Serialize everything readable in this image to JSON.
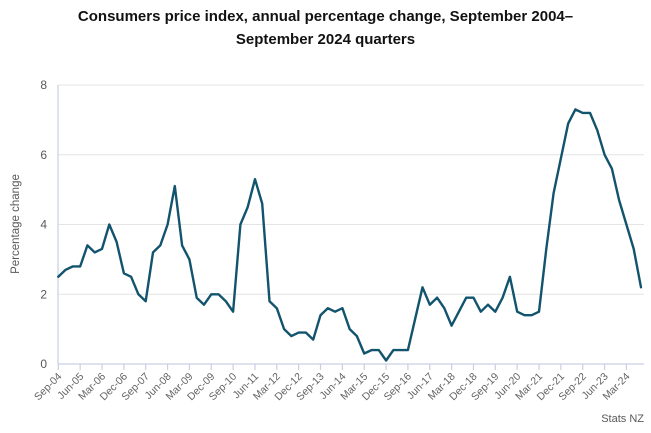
{
  "chart_data": {
    "type": "line",
    "title": "Consumers price index, annual percentage change, September 2004–September 2024 quarters",
    "ylabel": "Percentage change",
    "xlabel": "",
    "ylim": [
      0,
      8
    ],
    "yticks": [
      0,
      2,
      4,
      6,
      8
    ],
    "grid": "horizontal",
    "legend": "none",
    "attribution": "Stats NZ",
    "line_color": "#12536e",
    "xtick_every": 3,
    "xtick_labels": [
      "Sep-04",
      "Jun-05",
      "Mar-06",
      "Dec-06",
      "Sep-07",
      "Jun-08",
      "Mar-09",
      "Dec-09",
      "Sep-10",
      "Jun-11",
      "Mar-12",
      "Dec-12",
      "Sep-13",
      "Jun-14",
      "Mar-15",
      "Dec-15",
      "Sep-16",
      "Jun-17",
      "Mar-18",
      "Dec-18",
      "Sep-19",
      "Jun-20",
      "Mar-21",
      "Dec-21",
      "Sep-22",
      "Jun-23",
      "Mar-24"
    ],
    "x": [
      "Sep-04",
      "Dec-04",
      "Mar-05",
      "Jun-05",
      "Sep-05",
      "Dec-05",
      "Mar-06",
      "Jun-06",
      "Sep-06",
      "Dec-06",
      "Mar-07",
      "Jun-07",
      "Sep-07",
      "Dec-07",
      "Mar-08",
      "Jun-08",
      "Sep-08",
      "Dec-08",
      "Mar-09",
      "Jun-09",
      "Sep-09",
      "Dec-09",
      "Mar-10",
      "Jun-10",
      "Sep-10",
      "Dec-10",
      "Mar-11",
      "Jun-11",
      "Sep-11",
      "Dec-11",
      "Mar-12",
      "Jun-12",
      "Sep-12",
      "Dec-12",
      "Mar-13",
      "Jun-13",
      "Sep-13",
      "Dec-13",
      "Mar-14",
      "Jun-14",
      "Sep-14",
      "Dec-14",
      "Mar-15",
      "Jun-15",
      "Sep-15",
      "Dec-15",
      "Mar-16",
      "Jun-16",
      "Sep-16",
      "Dec-16",
      "Mar-17",
      "Jun-17",
      "Sep-17",
      "Dec-17",
      "Mar-18",
      "Jun-18",
      "Sep-18",
      "Dec-18",
      "Mar-19",
      "Jun-19",
      "Sep-19",
      "Dec-19",
      "Mar-20",
      "Jun-20",
      "Sep-20",
      "Dec-20",
      "Mar-21",
      "Jun-21",
      "Sep-21",
      "Dec-21",
      "Mar-22",
      "Jun-22",
      "Sep-22",
      "Dec-22",
      "Mar-23",
      "Jun-23",
      "Sep-23",
      "Dec-23",
      "Mar-24",
      "Jun-24",
      "Sep-24"
    ],
    "values": [
      2.5,
      2.7,
      2.8,
      2.8,
      3.4,
      3.2,
      3.3,
      4.0,
      3.5,
      2.6,
      2.5,
      2.0,
      1.8,
      3.2,
      3.4,
      4.0,
      5.1,
      3.4,
      3.0,
      1.9,
      1.7,
      2.0,
      2.0,
      1.8,
      1.5,
      4.0,
      4.5,
      5.3,
      4.6,
      1.8,
      1.6,
      1.0,
      0.8,
      0.9,
      0.9,
      0.7,
      1.4,
      1.6,
      1.5,
      1.6,
      1.0,
      0.8,
      0.3,
      0.4,
      0.4,
      0.1,
      0.4,
      0.4,
      0.4,
      1.3,
      2.2,
      1.7,
      1.9,
      1.6,
      1.1,
      1.5,
      1.9,
      1.9,
      1.5,
      1.7,
      1.5,
      1.9,
      2.5,
      1.5,
      1.4,
      1.4,
      1.5,
      3.3,
      4.9,
      5.9,
      6.9,
      7.3,
      7.2,
      7.2,
      6.7,
      6.0,
      5.6,
      4.7,
      4.0,
      3.3,
      2.2
    ]
  },
  "colors": {
    "line": "#12536e",
    "grid": "#e4e4e4",
    "axis": "#c9cfe4",
    "axis_text": "#595959",
    "title": "#121212"
  }
}
